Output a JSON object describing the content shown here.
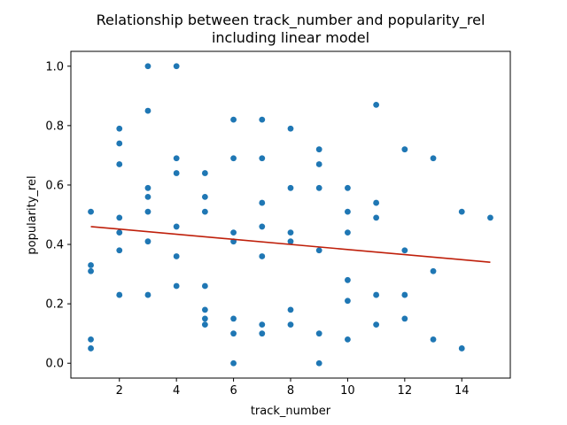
{
  "chart_data": {
    "type": "scatter",
    "title": "Relationship between track_number and popularity_rel\nincluding linear model",
    "xlabel": "track_number",
    "ylabel": "popularity_rel",
    "xlim": [
      0.3,
      15.7
    ],
    "ylim": [
      -0.05,
      1.05
    ],
    "xticks": [
      2,
      4,
      6,
      8,
      10,
      12,
      14
    ],
    "yticks": [
      0.0,
      0.2,
      0.4,
      0.6,
      0.8,
      1.0
    ],
    "xtick_labels": [
      "2",
      "4",
      "6",
      "8",
      "10",
      "12",
      "14"
    ],
    "ytick_labels": [
      "0.0",
      "0.2",
      "0.4",
      "0.6",
      "0.8",
      "1.0"
    ],
    "grid": false,
    "legend": "none",
    "point_color": "#1f77b4",
    "line_color": "#bf1f0a",
    "points": [
      [
        1,
        0.51
      ],
      [
        1,
        0.33
      ],
      [
        1,
        0.31
      ],
      [
        1,
        0.08
      ],
      [
        1,
        0.05
      ],
      [
        2,
        0.79
      ],
      [
        2,
        0.74
      ],
      [
        2,
        0.67
      ],
      [
        2,
        0.49
      ],
      [
        2,
        0.44
      ],
      [
        2,
        0.38
      ],
      [
        2,
        0.23
      ],
      [
        3,
        1.0
      ],
      [
        3,
        0.85
      ],
      [
        3,
        0.59
      ],
      [
        3,
        0.56
      ],
      [
        3,
        0.51
      ],
      [
        3,
        0.41
      ],
      [
        3,
        0.23
      ],
      [
        4,
        1.0
      ],
      [
        4,
        0.69
      ],
      [
        4,
        0.64
      ],
      [
        4,
        0.46
      ],
      [
        4,
        0.36
      ],
      [
        4,
        0.26
      ],
      [
        5,
        0.64
      ],
      [
        5,
        0.56
      ],
      [
        5,
        0.51
      ],
      [
        5,
        0.26
      ],
      [
        5,
        0.18
      ],
      [
        5,
        0.15
      ],
      [
        5,
        0.13
      ],
      [
        6,
        0.82
      ],
      [
        6,
        0.69
      ],
      [
        6,
        0.44
      ],
      [
        6,
        0.41
      ],
      [
        6,
        0.15
      ],
      [
        6,
        0.1
      ],
      [
        6,
        0.0
      ],
      [
        7,
        0.82
      ],
      [
        7,
        0.69
      ],
      [
        7,
        0.54
      ],
      [
        7,
        0.46
      ],
      [
        7,
        0.36
      ],
      [
        7,
        0.13
      ],
      [
        7,
        0.1
      ],
      [
        8,
        0.79
      ],
      [
        8,
        0.59
      ],
      [
        8,
        0.44
      ],
      [
        8,
        0.41
      ],
      [
        8,
        0.18
      ],
      [
        8,
        0.13
      ],
      [
        9,
        0.72
      ],
      [
        9,
        0.67
      ],
      [
        9,
        0.59
      ],
      [
        9,
        0.38
      ],
      [
        9,
        0.1
      ],
      [
        9,
        0.0
      ],
      [
        10,
        0.59
      ],
      [
        10,
        0.51
      ],
      [
        10,
        0.44
      ],
      [
        10,
        0.28
      ],
      [
        10,
        0.21
      ],
      [
        10,
        0.08
      ],
      [
        11,
        0.87
      ],
      [
        11,
        0.54
      ],
      [
        11,
        0.49
      ],
      [
        11,
        0.23
      ],
      [
        11,
        0.13
      ],
      [
        12,
        0.72
      ],
      [
        12,
        0.38
      ],
      [
        12,
        0.23
      ],
      [
        12,
        0.15
      ],
      [
        13,
        0.69
      ],
      [
        13,
        0.31
      ],
      [
        13,
        0.08
      ],
      [
        14,
        0.51
      ],
      [
        14,
        0.05
      ],
      [
        15,
        0.49
      ]
    ],
    "linear_model": {
      "x": [
        1,
        15
      ],
      "y": [
        0.46,
        0.34
      ]
    }
  }
}
